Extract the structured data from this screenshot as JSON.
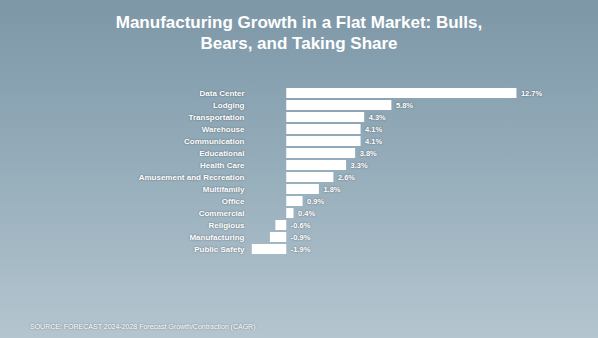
{
  "chart_data": {
    "type": "bar",
    "title": "Manufacturing Growth in a Flat Market: Bulls, Bears, and Taking Share",
    "source": "SOURCE: FORECAST 2024-2028 Forecast Growth/Contraction (CAGR)",
    "orientation": "horizontal",
    "categories": [
      "Data Center",
      "Lodging",
      "Transportation",
      "Warehouse",
      "Communication",
      "Educational",
      "Health Care",
      "Amusement and Recreation",
      "Multifamily",
      "Office",
      "Commercial",
      "Religious",
      "Manufacturing",
      "Public Safety"
    ],
    "values": [
      12.7,
      5.8,
      4.3,
      4.1,
      4.1,
      3.8,
      3.3,
      2.6,
      1.8,
      0.9,
      0.4,
      -0.6,
      -0.9,
      -1.9
    ],
    "value_labels": [
      "12.7%",
      "5.8%",
      "4.3%",
      "4.1%",
      "4.1%",
      "3.8%",
      "3.3%",
      "2.6%",
      "1.8%",
      "0.9%",
      "0.4%",
      "-0.6%",
      "-0.9%",
      "-1.9%"
    ],
    "color": "#ffffff",
    "xlim": [
      -2,
      14
    ],
    "data_labels": true,
    "tick_labels": "y",
    "grid": false
  }
}
